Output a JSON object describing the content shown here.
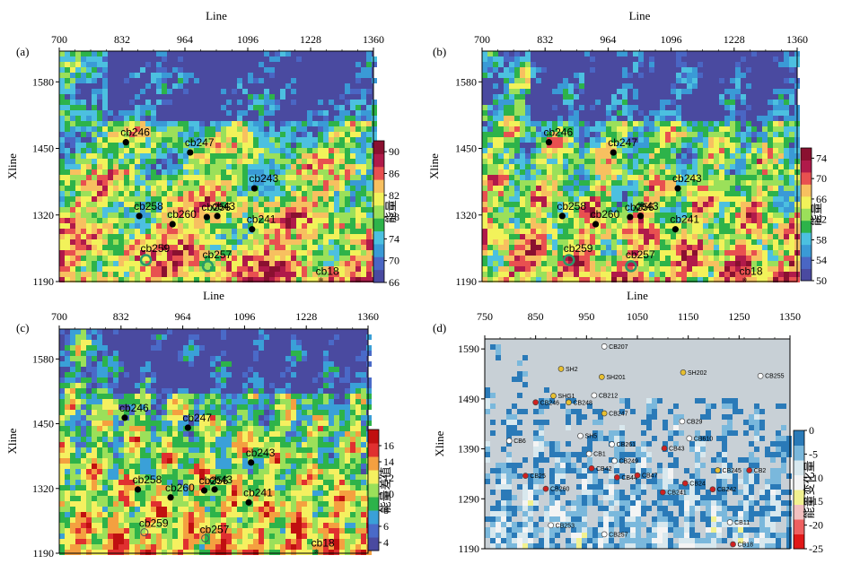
{
  "colors": {
    "energy_scale": [
      "#4a4aa0",
      "#4a66c4",
      "#3a9ad6",
      "#4cc0e0",
      "#2db34a",
      "#9be05a",
      "#f2f25a",
      "#f7c060",
      "#e85050",
      "#b01a4a",
      "#8a1030"
    ],
    "diff_scale": [
      "#4a4aa0",
      "#4a6ac8",
      "#3aa0d8",
      "#2db34a",
      "#9be05a",
      "#f5f060",
      "#f4a040",
      "#e03030",
      "#c01010"
    ],
    "change_scale": [
      "#2a7ab8",
      "#7ab8dc",
      "#d8e8ee",
      "#f4f4f4",
      "#f2f290",
      "#f2c0c0",
      "#ee6060",
      "#e01818"
    ],
    "map_bg": "#c8d0d6"
  },
  "chart_data": [
    {
      "panel": "(a)",
      "type": "heatmap",
      "xlabel": "Line",
      "ylabel": "Xline",
      "xticks": [
        700,
        832,
        964,
        1096,
        1228,
        1360
      ],
      "yticks": [
        1580,
        1450,
        1320,
        1190
      ],
      "xlim": [
        700,
        1360
      ],
      "ylim": [
        1190,
        1640
      ],
      "colorbar": {
        "label": "能量",
        "ticks": [
          90,
          86,
          82,
          78,
          74,
          70,
          66
        ],
        "range": [
          66,
          92
        ]
      },
      "wells": [
        {
          "name": "cb246",
          "x": 840,
          "y": 1462,
          "marker": "dot"
        },
        {
          "name": "cb247",
          "x": 975,
          "y": 1442,
          "marker": "dot"
        },
        {
          "name": "cb243",
          "x": 1110,
          "y": 1372,
          "marker": "dot"
        },
        {
          "name": "cb258",
          "x": 868,
          "y": 1318,
          "marker": "dot"
        },
        {
          "name": "cb260",
          "x": 938,
          "y": 1302,
          "marker": "dot"
        },
        {
          "name": "cb256",
          "x": 1010,
          "y": 1316,
          "marker": "dot"
        },
        {
          "name": "cb43",
          "x": 1032,
          "y": 1318,
          "marker": "dot"
        },
        {
          "name": "cb241",
          "x": 1105,
          "y": 1292,
          "marker": "dot"
        },
        {
          "name": "cb259",
          "x": 882,
          "y": 1232,
          "marker": "ring"
        },
        {
          "name": "cb257",
          "x": 1012,
          "y": 1220,
          "marker": "ring"
        },
        {
          "name": "cb18",
          "x": 1250,
          "y": 1196,
          "marker": "star"
        }
      ]
    },
    {
      "panel": "(b)",
      "type": "heatmap",
      "xlabel": "Line",
      "ylabel": "Xline",
      "xticks": [
        700,
        832,
        964,
        1096,
        1228,
        1360
      ],
      "yticks": [
        1580,
        1450,
        1320,
        1190
      ],
      "xlim": [
        700,
        1360
      ],
      "ylim": [
        1190,
        1640
      ],
      "colorbar": {
        "label": "能量",
        "ticks": [
          74,
          70,
          66,
          62,
          58,
          54,
          50
        ],
        "range": [
          50,
          76
        ]
      },
      "wells": [
        {
          "name": "cb246",
          "x": 840,
          "y": 1462,
          "marker": "dot"
        },
        {
          "name": "cb247",
          "x": 975,
          "y": 1442,
          "marker": "dot"
        },
        {
          "name": "cb243",
          "x": 1110,
          "y": 1372,
          "marker": "dot"
        },
        {
          "name": "cb258",
          "x": 868,
          "y": 1318,
          "marker": "dot"
        },
        {
          "name": "cb260",
          "x": 938,
          "y": 1302,
          "marker": "dot"
        },
        {
          "name": "cb256",
          "x": 1010,
          "y": 1316,
          "marker": "dot"
        },
        {
          "name": "cb43",
          "x": 1032,
          "y": 1318,
          "marker": "dot"
        },
        {
          "name": "cb241",
          "x": 1105,
          "y": 1292,
          "marker": "dot"
        },
        {
          "name": "cb259",
          "x": 882,
          "y": 1232,
          "marker": "ring"
        },
        {
          "name": "cb257",
          "x": 1012,
          "y": 1220,
          "marker": "ring"
        },
        {
          "name": "cb18",
          "x": 1250,
          "y": 1196,
          "marker": "star"
        }
      ]
    },
    {
      "panel": "(c)",
      "type": "heatmap",
      "xlabel": "Line",
      "ylabel": "Xline",
      "xticks": [
        700,
        832,
        964,
        1096,
        1228,
        1360
      ],
      "yticks": [
        1580,
        1450,
        1320,
        1190
      ],
      "xlim": [
        700,
        1360
      ],
      "ylim": [
        1190,
        1640
      ],
      "colorbar": {
        "label": "能量差值",
        "ticks": [
          16,
          14,
          12,
          10,
          8,
          6,
          4
        ],
        "range": [
          3,
          18
        ]
      },
      "wells": [
        {
          "name": "cb246",
          "x": 840,
          "y": 1462,
          "marker": "dot"
        },
        {
          "name": "cb247",
          "x": 975,
          "y": 1442,
          "marker": "dot"
        },
        {
          "name": "cb243",
          "x": 1110,
          "y": 1372,
          "marker": "dot"
        },
        {
          "name": "cb258",
          "x": 868,
          "y": 1318,
          "marker": "dot"
        },
        {
          "name": "cb260",
          "x": 938,
          "y": 1302,
          "marker": "dot"
        },
        {
          "name": "cb256",
          "x": 1010,
          "y": 1316,
          "marker": "dot"
        },
        {
          "name": "cb43",
          "x": 1032,
          "y": 1318,
          "marker": "dot"
        },
        {
          "name": "cb241",
          "x": 1105,
          "y": 1292,
          "marker": "dot"
        },
        {
          "name": "cb259",
          "x": 882,
          "y": 1232,
          "marker": "faint"
        },
        {
          "name": "cb257",
          "x": 1012,
          "y": 1220,
          "marker": "faint"
        },
        {
          "name": "cb18",
          "x": 1250,
          "y": 1196,
          "marker": "star"
        }
      ]
    },
    {
      "panel": "(d)",
      "type": "heatmap",
      "xlabel": "Line",
      "ylabel": "Xline",
      "xticks": [
        750,
        850,
        950,
        1050,
        1150,
        1250,
        1350
      ],
      "yticks": [
        1590,
        1490,
        1390,
        1290,
        1190
      ],
      "xlim": [
        750,
        1350
      ],
      "ylim": [
        1190,
        1610
      ],
      "colorbar": {
        "label": "能量变化量",
        "ticks": [
          0,
          -5,
          -10,
          -15,
          -20,
          -25
        ],
        "range": [
          -25,
          0
        ]
      },
      "wells": [
        {
          "name": "SH2",
          "x": 900,
          "y": 1550,
          "marker": "yellow"
        },
        {
          "name": "CB207",
          "x": 985,
          "y": 1595,
          "marker": "white"
        },
        {
          "name": "SH201",
          "x": 980,
          "y": 1534,
          "marker": "yellow"
        },
        {
          "name": "SH202",
          "x": 1140,
          "y": 1543,
          "marker": "yellow"
        },
        {
          "name": "CB255",
          "x": 1292,
          "y": 1536,
          "marker": "white"
        },
        {
          "name": "SHG1",
          "x": 885,
          "y": 1496,
          "marker": "yellow"
        },
        {
          "name": "CB212",
          "x": 965,
          "y": 1497,
          "marker": "white"
        },
        {
          "name": "CB246",
          "x": 850,
          "y": 1483,
          "marker": "red"
        },
        {
          "name": "CB248",
          "x": 915,
          "y": 1483,
          "marker": "yellow"
        },
        {
          "name": "CB247",
          "x": 985,
          "y": 1461,
          "marker": "yellow"
        },
        {
          "name": "CB29",
          "x": 1138,
          "y": 1445,
          "marker": "white"
        },
        {
          "name": "SH5",
          "x": 938,
          "y": 1416,
          "marker": "white"
        },
        {
          "name": "CB610",
          "x": 1152,
          "y": 1411,
          "marker": "white"
        },
        {
          "name": "CB6",
          "x": 798,
          "y": 1406,
          "marker": "white"
        },
        {
          "name": "CB261",
          "x": 1000,
          "y": 1399,
          "marker": "white"
        },
        {
          "name": "CB43",
          "x": 1103,
          "y": 1391,
          "marker": "red"
        },
        {
          "name": "CB1",
          "x": 955,
          "y": 1380,
          "marker": "white"
        },
        {
          "name": "CB249",
          "x": 1005,
          "y": 1366,
          "marker": "white"
        },
        {
          "name": "CB245",
          "x": 1208,
          "y": 1347,
          "marker": "yellow"
        },
        {
          "name": "CB2",
          "x": 1270,
          "y": 1347,
          "marker": "red"
        },
        {
          "name": "CB42",
          "x": 960,
          "y": 1351,
          "marker": "red"
        },
        {
          "name": "CB25",
          "x": 830,
          "y": 1336,
          "marker": "red"
        },
        {
          "name": "CB44",
          "x": 1010,
          "y": 1333,
          "marker": "red"
        },
        {
          "name": "CB47",
          "x": 1050,
          "y": 1337,
          "marker": "red"
        },
        {
          "name": "CB24",
          "x": 1144,
          "y": 1321,
          "marker": "red"
        },
        {
          "name": "CB260",
          "x": 870,
          "y": 1310,
          "marker": "red"
        },
        {
          "name": "CB242",
          "x": 1198,
          "y": 1309,
          "marker": "red"
        },
        {
          "name": "CB241",
          "x": 1100,
          "y": 1303,
          "marker": "red"
        },
        {
          "name": "CB11",
          "x": 1232,
          "y": 1243,
          "marker": "white"
        },
        {
          "name": "CB253",
          "x": 880,
          "y": 1237,
          "marker": "white"
        },
        {
          "name": "CB257",
          "x": 985,
          "y": 1219,
          "marker": "white"
        },
        {
          "name": "CB18",
          "x": 1238,
          "y": 1199,
          "marker": "red"
        }
      ]
    }
  ]
}
